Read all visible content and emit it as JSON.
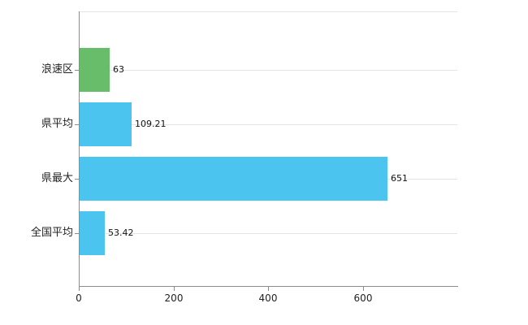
{
  "chart_data": {
    "type": "bar",
    "orientation": "horizontal",
    "title": "",
    "xlabel": "",
    "ylabel": "",
    "categories": [
      "浪速区",
      "県平均",
      "県最大",
      "全国平均"
    ],
    "values": [
      63,
      109.21,
      651,
      53.42
    ],
    "value_labels": [
      "63",
      "109.21",
      "651",
      "53.42"
    ],
    "bar_colors": [
      "#67bd6a",
      "#4bc4f0",
      "#4bc4f0",
      "#4bc4f0"
    ],
    "xlim": [
      0,
      800
    ],
    "x_ticks": [
      0,
      200,
      400,
      600
    ],
    "x_tick_labels": [
      "0",
      "200",
      "400",
      "600"
    ],
    "grid": true,
    "legend": false
  },
  "colors": {
    "bar_blue": "#4bc4f0",
    "bar_green": "#67bd6a",
    "axis": "#8c8c8c",
    "grid": "#e4e4e4",
    "background": "#ffffff"
  }
}
